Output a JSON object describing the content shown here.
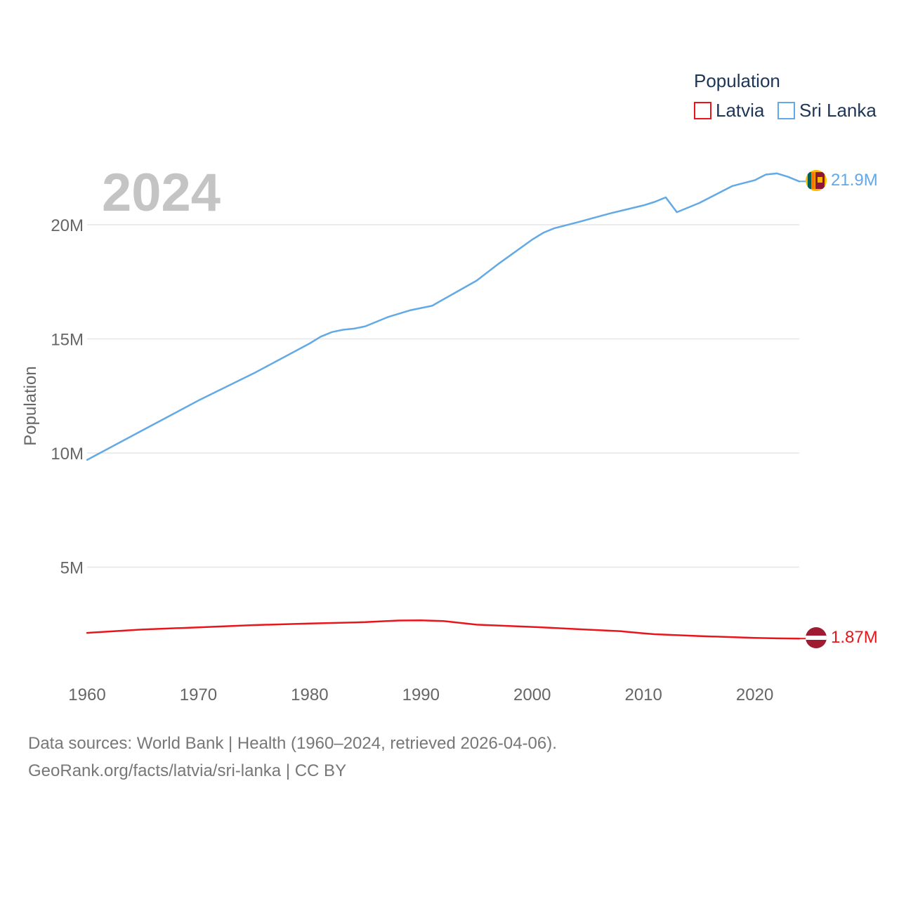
{
  "chart_data": {
    "type": "line",
    "year_label": "2024",
    "ylabel": "Population",
    "ylim": [
      0,
      24000000
    ],
    "xlim": [
      1960,
      2024
    ],
    "x_ticks": [
      1960,
      1970,
      1980,
      1990,
      2000,
      2010,
      2020
    ],
    "x_tick_labels": [
      "1960",
      "1970",
      "1980",
      "1990",
      "2000",
      "2010",
      "2020"
    ],
    "y_ticks": [
      5000000,
      10000000,
      15000000,
      20000000
    ],
    "y_tick_labels": [
      "5M",
      "10M",
      "15M",
      "20M"
    ],
    "legend": {
      "title": "Population",
      "placement": "top-right",
      "entries": [
        "Latvia",
        "Sri Lanka"
      ]
    },
    "series": [
      {
        "name": "Latvia",
        "color": "#e8161b",
        "flag_icon": "latvia-flag-icon",
        "end_label": "1.87M",
        "points": [
          [
            1960,
            2120000
          ],
          [
            1965,
            2270000
          ],
          [
            1970,
            2360000
          ],
          [
            1975,
            2460000
          ],
          [
            1980,
            2530000
          ],
          [
            1985,
            2590000
          ],
          [
            1988,
            2660000
          ],
          [
            1990,
            2670000
          ],
          [
            1992,
            2640000
          ],
          [
            1995,
            2480000
          ],
          [
            2000,
            2380000
          ],
          [
            2005,
            2260000
          ],
          [
            2008,
            2190000
          ],
          [
            2010,
            2100000
          ],
          [
            2011,
            2060000
          ],
          [
            2015,
            1980000
          ],
          [
            2020,
            1900000
          ],
          [
            2022,
            1880000
          ],
          [
            2024,
            1870000
          ]
        ]
      },
      {
        "name": "Sri Lanka",
        "color": "#63a9e6",
        "flag_icon": "sri-lanka-flag-icon",
        "end_label": "21.9M",
        "points": [
          [
            1960,
            9700000
          ],
          [
            1965,
            11000000
          ],
          [
            1970,
            12300000
          ],
          [
            1975,
            13500000
          ],
          [
            1980,
            14800000
          ],
          [
            1981,
            15100000
          ],
          [
            1982,
            15300000
          ],
          [
            1983,
            15400000
          ],
          [
            1984,
            15450000
          ],
          [
            1985,
            15550000
          ],
          [
            1987,
            15950000
          ],
          [
            1989,
            16250000
          ],
          [
            1991,
            16450000
          ],
          [
            1993,
            17000000
          ],
          [
            1995,
            17550000
          ],
          [
            1997,
            18300000
          ],
          [
            2000,
            19350000
          ],
          [
            2001,
            19650000
          ],
          [
            2002,
            19850000
          ],
          [
            2004,
            20100000
          ],
          [
            2007,
            20500000
          ],
          [
            2010,
            20850000
          ],
          [
            2011,
            21000000
          ],
          [
            2012,
            21200000
          ],
          [
            2013,
            20550000
          ],
          [
            2015,
            20950000
          ],
          [
            2018,
            21700000
          ],
          [
            2020,
            21950000
          ],
          [
            2021,
            22200000
          ],
          [
            2022,
            22250000
          ],
          [
            2023,
            22100000
          ],
          [
            2024,
            21900000
          ]
        ]
      }
    ]
  },
  "footer": {
    "source_line1": "Data sources: World Bank | Health (1960–2024, retrieved 2026-04-06).",
    "source_line2": "GeoRank.org/facts/latvia/sri-lanka | CC BY"
  }
}
